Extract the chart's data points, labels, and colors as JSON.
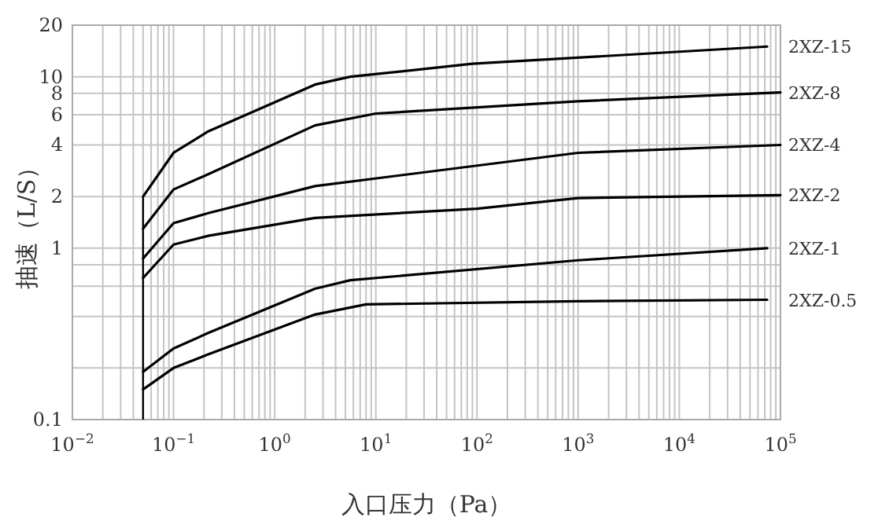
{
  "chart_data": {
    "type": "line",
    "xlabel": "入口压力（Pa）",
    "ylabel": "抽速（L/S）",
    "log": "xy",
    "grid": true,
    "legend": false,
    "marker": "none",
    "line_style": "solid",
    "xlim": [
      0.01,
      100000
    ],
    "ylim": [
      0.1,
      20
    ],
    "xticks": [
      {
        "value": 0.01,
        "label": "10$^{−2}$"
      },
      {
        "value": 0.02,
        "label": null
      },
      {
        "value": 0.03,
        "label": null
      },
      {
        "value": 0.04,
        "label": null
      },
      {
        "value": 0.05,
        "label": null
      },
      {
        "value": 0.06,
        "label": null
      },
      {
        "value": 0.07,
        "label": null
      },
      {
        "value": 0.08,
        "label": null
      },
      {
        "value": 0.09,
        "label": null
      },
      {
        "value": 0.1,
        "label": "10$^{−1}$"
      },
      {
        "value": 0.2,
        "label": null
      },
      {
        "value": 0.3,
        "label": null
      },
      {
        "value": 0.4,
        "label": null
      },
      {
        "value": 0.5,
        "label": null
      },
      {
        "value": 0.6,
        "label": null
      },
      {
        "value": 0.7,
        "label": null
      },
      {
        "value": 0.8,
        "label": null
      },
      {
        "value": 0.9,
        "label": null
      },
      {
        "value": 1,
        "label": "10$^{0}$"
      },
      {
        "value": 2,
        "label": null
      },
      {
        "value": 3,
        "label": null
      },
      {
        "value": 4,
        "label": null
      },
      {
        "value": 5,
        "label": null
      },
      {
        "value": 6,
        "label": null
      },
      {
        "value": 7,
        "label": null
      },
      {
        "value": 8,
        "label": null
      },
      {
        "value": 9,
        "label": null
      },
      {
        "value": 10,
        "label": "10$^{1}$"
      },
      {
        "value": 20,
        "label": null
      },
      {
        "value": 30,
        "label": null
      },
      {
        "value": 40,
        "label": null
      },
      {
        "value": 50,
        "label": null
      },
      {
        "value": 60,
        "label": null
      },
      {
        "value": 70,
        "label": null
      },
      {
        "value": 80,
        "label": null
      },
      {
        "value": 90,
        "label": null
      },
      {
        "value": 100,
        "label": "10$^{2}$"
      },
      {
        "value": 200,
        "label": null
      },
      {
        "value": 300,
        "label": null
      },
      {
        "value": 400,
        "label": null
      },
      {
        "value": 500,
        "label": null
      },
      {
        "value": 600,
        "label": null
      },
      {
        "value": 700,
        "label": null
      },
      {
        "value": 800,
        "label": null
      },
      {
        "value": 900,
        "label": null
      },
      {
        "value": 1000,
        "label": "10$^{3}$"
      },
      {
        "value": 2000,
        "label": null
      },
      {
        "value": 3000,
        "label": null
      },
      {
        "value": 4000,
        "label": null
      },
      {
        "value": 5000,
        "label": null
      },
      {
        "value": 6000,
        "label": null
      },
      {
        "value": 7000,
        "label": null
      },
      {
        "value": 8000,
        "label": null
      },
      {
        "value": 9000,
        "label": null
      },
      {
        "value": 10000,
        "label": "10$^{4}$"
      },
      {
        "value": 20000,
        "label": null
      },
      {
        "value": 30000,
        "label": null
      },
      {
        "value": 40000,
        "label": null
      },
      {
        "value": 50000,
        "label": null
      },
      {
        "value": 60000,
        "label": null
      },
      {
        "value": 70000,
        "label": null
      },
      {
        "value": 80000,
        "label": null
      },
      {
        "value": 90000,
        "label": null
      },
      {
        "value": 100000,
        "label": "10$^{5}$"
      }
    ],
    "ref_lines": [
      {
        "axis": "x",
        "value": 0.05,
        "color": "#000000"
      }
    ],
    "yticks": [
      {
        "value": 0.1,
        "label": "0.1"
      },
      {
        "value": 0.2,
        "label": null
      },
      {
        "value": 0.4,
        "label": null
      },
      {
        "value": 0.6,
        "label": null
      },
      {
        "value": 0.8,
        "label": null
      },
      1,
      2,
      4,
      6,
      8,
      10,
      20
    ],
    "series": [
      {
        "name": "2XZ-15",
        "color": "#000000",
        "x": [
          0.05,
          0.1,
          0.22,
          2.5,
          5.6,
          90,
          74000
        ],
        "values": [
          2.0,
          3.6,
          4.8,
          9.0,
          10,
          11.9,
          15
        ]
      },
      {
        "name": "2XZ-8",
        "color": "#000000",
        "x": [
          0.05,
          0.1,
          0.22,
          2.5,
          10,
          1000,
          100000
        ],
        "values": [
          1.3,
          2.2,
          2.7,
          5.2,
          6.1,
          7.2,
          8.1
        ]
      },
      {
        "name": "2XZ-4",
        "color": "#000000",
        "x": [
          0.05,
          0.1,
          0.22,
          2.5,
          1000,
          100000
        ],
        "values": [
          0.87,
          1.4,
          1.6,
          2.3,
          3.6,
          4.0
        ]
      },
      {
        "name": "2XZ-2",
        "color": "#000000",
        "x": [
          0.05,
          0.1,
          0.22,
          2.5,
          100,
          1000,
          100000
        ],
        "values": [
          0.67,
          1.05,
          1.18,
          1.5,
          1.7,
          1.96,
          2.04
        ]
      },
      {
        "name": "2XZ-1",
        "color": "#000000",
        "x": [
          0.05,
          0.1,
          0.22,
          2.5,
          5.6,
          1000,
          74000
        ],
        "values": [
          0.19,
          0.26,
          0.32,
          0.58,
          0.65,
          0.85,
          1.0
        ]
      },
      {
        "name": "2XZ-0.5",
        "color": "#000000",
        "x": [
          0.05,
          0.1,
          0.22,
          2.5,
          8,
          1000,
          74000
        ],
        "values": [
          0.15,
          0.2,
          0.24,
          0.41,
          0.47,
          0.49,
          0.5
        ]
      }
    ]
  }
}
